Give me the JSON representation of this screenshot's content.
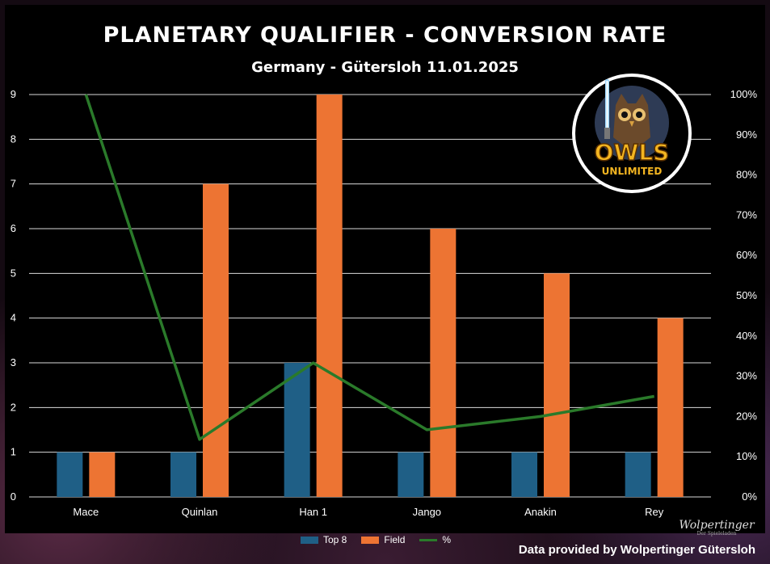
{
  "chart_data": {
    "type": "bar",
    "title": "PLANETARY QUALIFIER - CONVERSION RATE",
    "subtitle": "Germany - Gütersloh 11.01.2025",
    "categories": [
      "Mace",
      "Quinlan",
      "Han 1",
      "Jango",
      "Anakin",
      "Rey"
    ],
    "series": [
      {
        "name": "Top 8",
        "type": "bar",
        "color": "#1f5f86",
        "values": [
          1,
          1,
          3,
          1,
          1,
          1
        ]
      },
      {
        "name": "Field",
        "type": "bar",
        "color": "#ed7433",
        "values": [
          1,
          7,
          9,
          6,
          5,
          4
        ]
      },
      {
        "name": "%",
        "type": "line",
        "axis": "right",
        "color": "#2a7a2a",
        "values": [
          100,
          14.3,
          33.3,
          16.7,
          20,
          25
        ]
      }
    ],
    "y_left": {
      "min": 0,
      "max": 9,
      "ticks": [
        "0",
        "1",
        "2",
        "3",
        "4",
        "5",
        "6",
        "7",
        "8",
        "9"
      ]
    },
    "y_right": {
      "min": 0,
      "max": 100,
      "ticks": [
        "0%",
        "10%",
        "20%",
        "30%",
        "40%",
        "50%",
        "60%",
        "70%",
        "80%",
        "90%",
        "100%"
      ]
    },
    "grid": true,
    "legend": "bottom"
  },
  "logo": {
    "line1": "OWLS",
    "line2": "UNLIMITED"
  },
  "sponsor": {
    "name": "Wolpertinger",
    "tagline": "Der Spieleladen"
  },
  "source_text": "Data provided by Wolpertinger Gütersloh"
}
